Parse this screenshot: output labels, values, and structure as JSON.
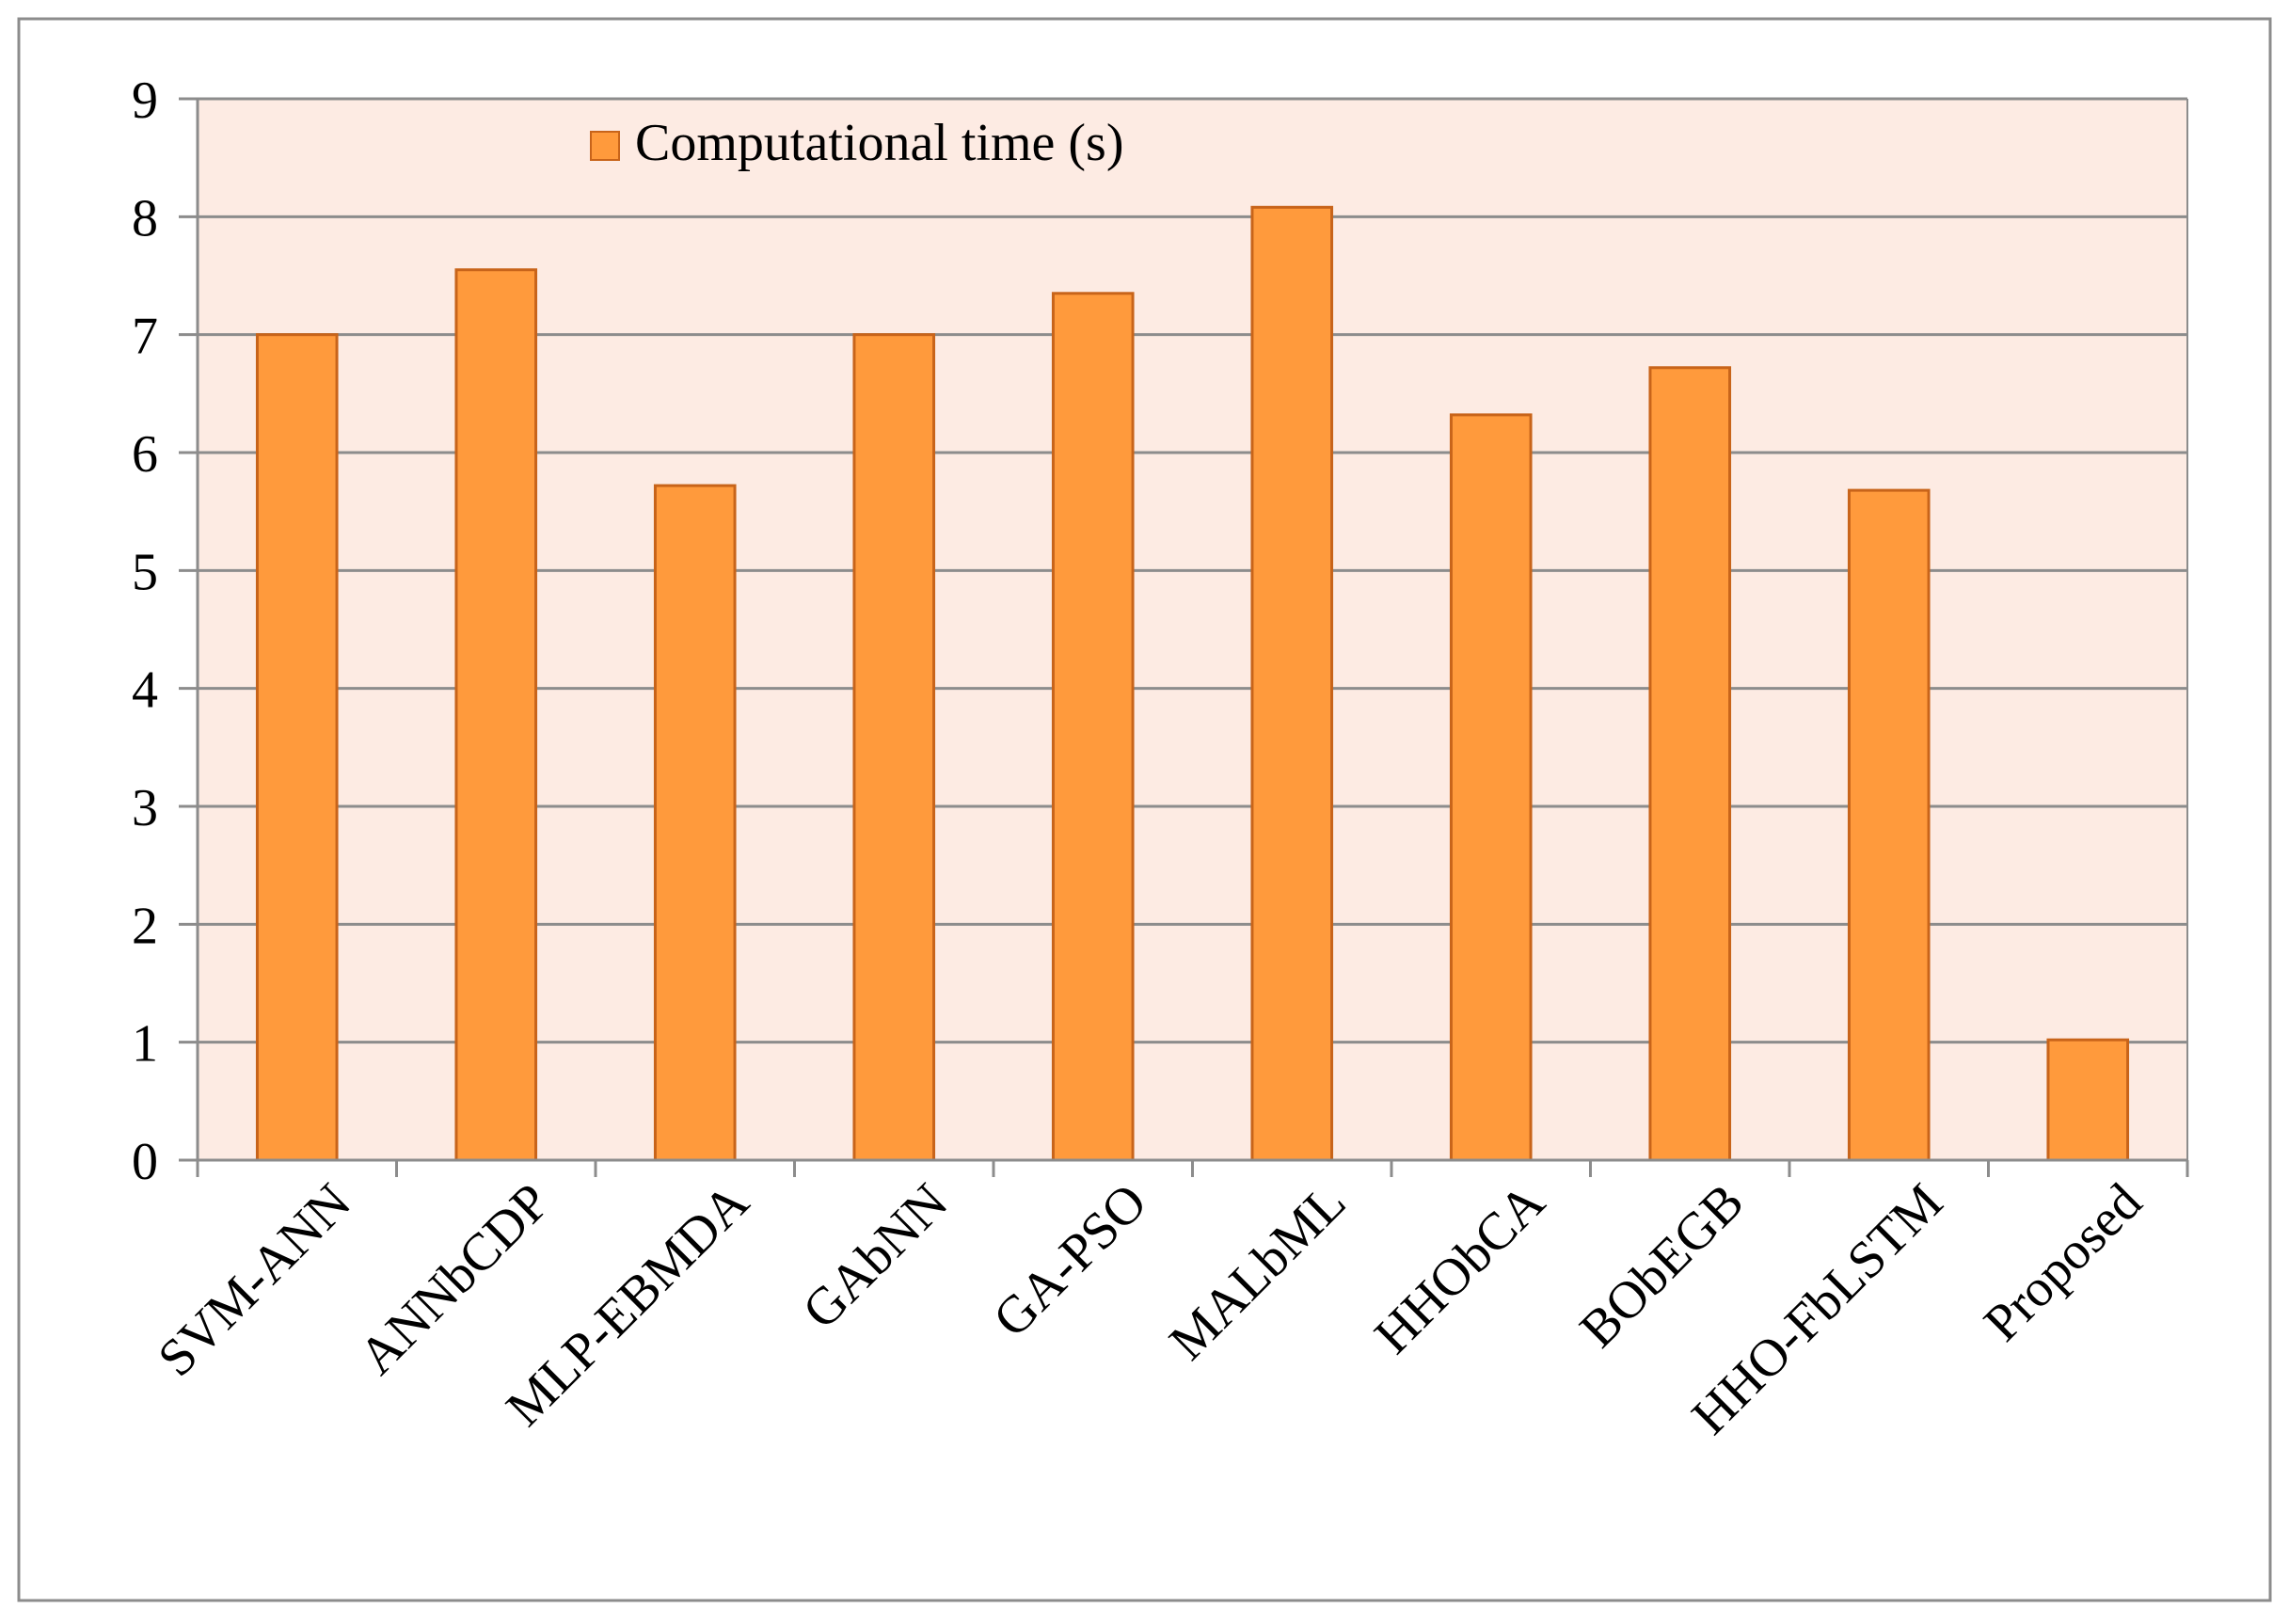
{
  "chart_data": {
    "type": "bar",
    "categories": [
      "SVM-ANN",
      "ANNbCDP",
      "MLP-EBMDA",
      "GAbNN",
      "GA-PSO",
      "MALbML",
      "HHObCA",
      "BObEGB",
      "HHO-FbLSTM",
      "Proposed"
    ],
    "series": [
      {
        "name": "Computational time (s)",
        "values": [
          7.0,
          7.55,
          5.72,
          7.0,
          7.35,
          8.08,
          6.32,
          6.72,
          5.68,
          1.02
        ]
      }
    ],
    "yticks": [
      "0",
      "1",
      "2",
      "3",
      "4",
      "5",
      "6",
      "7",
      "8",
      "9"
    ],
    "ylim": [
      0,
      9
    ],
    "grid": true,
    "legend_position": "top-left",
    "colors": {
      "bar_fill": "#FF9A3C",
      "bar_stroke": "#C8641A",
      "plot_bg": "#FDEBE3",
      "grid": "#8C8C8C",
      "frame": "#8C8C8C"
    }
  }
}
